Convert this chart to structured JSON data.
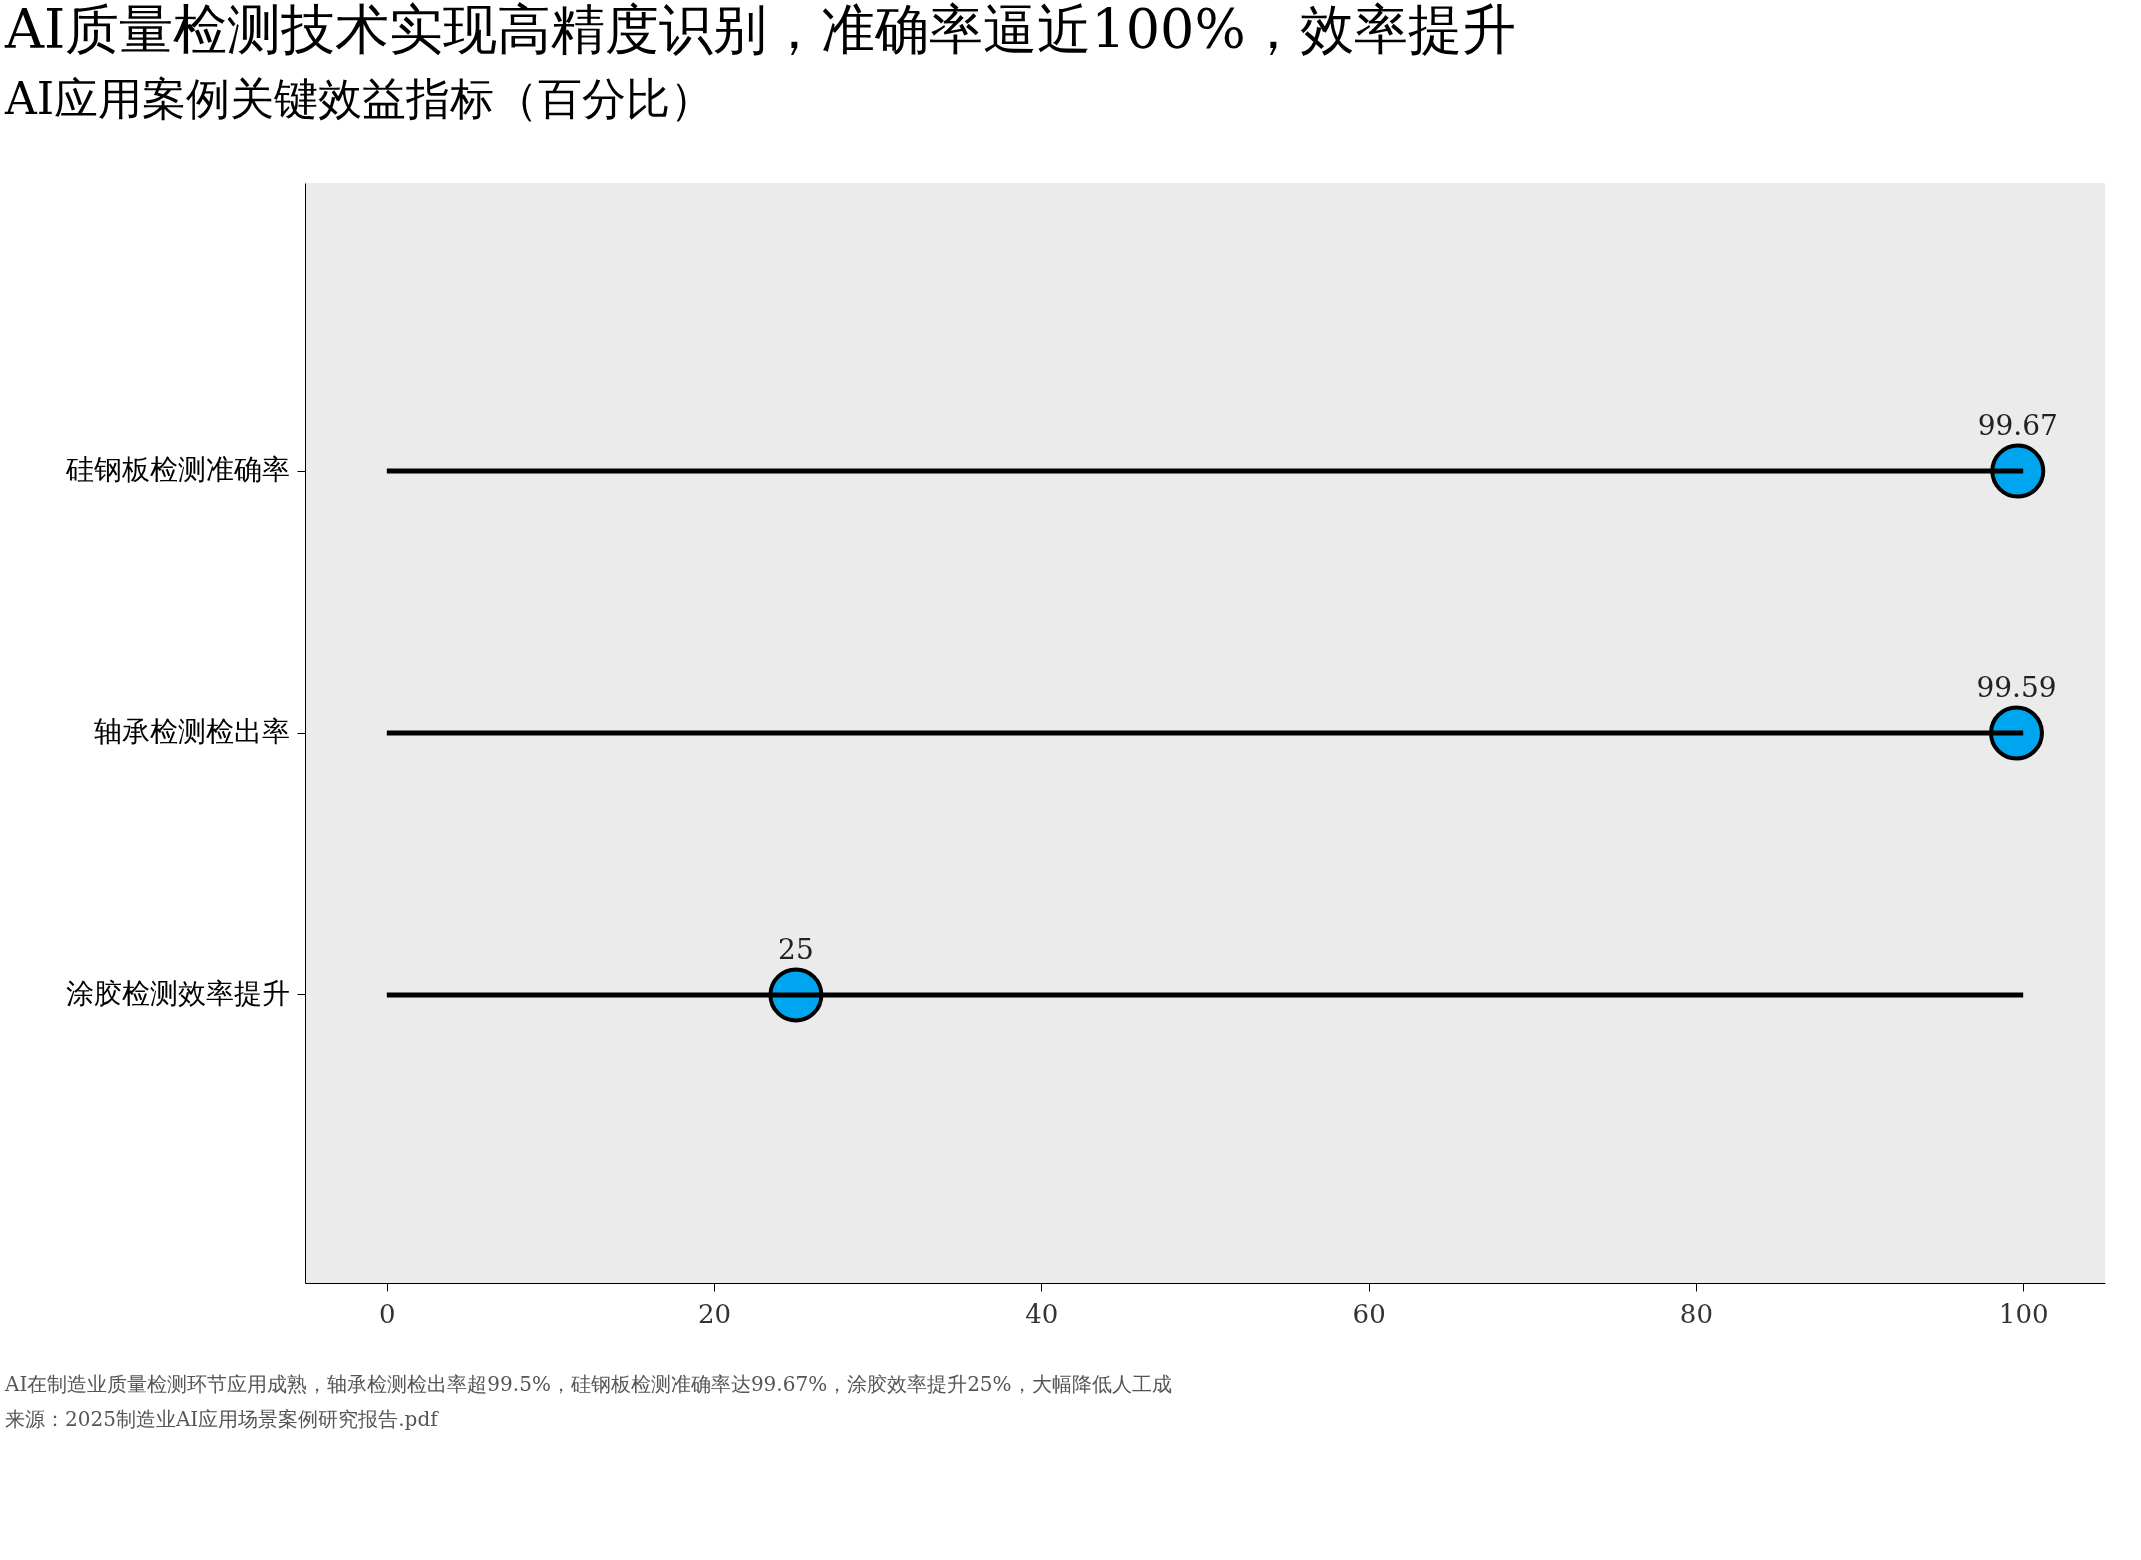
{
  "chart_data": {
    "type": "lollipop",
    "orientation": "horizontal",
    "title": "AI质量检测技术实现高精度识别，准确率逼近100%，效率提升",
    "subtitle": "AI应用案例关键效益指标（百分比）",
    "categories": [
      "硅钢板检测准确率",
      "轴承检测检出率",
      "涂胶检测效率提升"
    ],
    "series": [
      {
        "type": "bar",
        "color": "#000000",
        "values": [
          100,
          100,
          100
        ],
        "value_labels": [
          null,
          null,
          null
        ]
      },
      {
        "color": "#00a5ef",
        "values": [
          99.67,
          99.59,
          25
        ],
        "value_labels": [
          "99.67",
          "99.59",
          "25"
        ]
      }
    ],
    "marker": "circle",
    "xlim": [
      -5,
      105
    ],
    "xticks": [
      0,
      20,
      40,
      60,
      80,
      100
    ],
    "grid": false,
    "annotations": [
      "AI在制造业质量检测环节应用成熟，轴承检测检出率超99.5%，硅钢板检测准确率达99.67%，涂胶效率提升25%，大幅降低人工成",
      "来源：2025制造业AI应用场景案例研究报告.pdf"
    ]
  }
}
